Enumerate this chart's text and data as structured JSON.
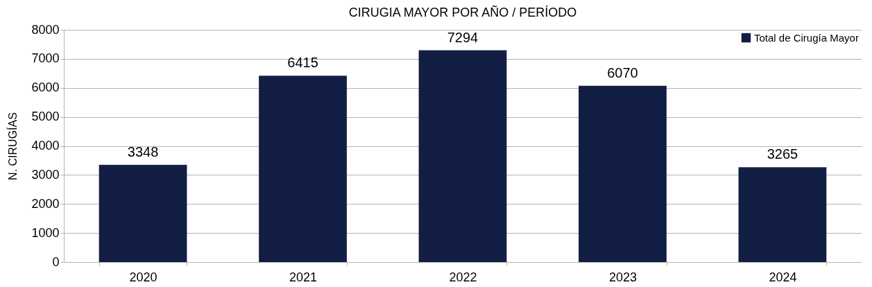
{
  "chart_data": {
    "type": "bar",
    "title": "CIRUGIA MAYOR POR AÑO / PERÍODO",
    "ylabel": "N. CIRUGÍAS",
    "categories": [
      "2020",
      "2021",
      "2022",
      "2023",
      "2024"
    ],
    "series": [
      {
        "name": "Total de Cirugía Mayor",
        "color": "#131e44",
        "values": [
          3348,
          6415,
          7294,
          6070,
          3265
        ]
      }
    ],
    "ylim": [
      0,
      8000
    ],
    "yticks": [
      0,
      1000,
      2000,
      3000,
      4000,
      5000,
      6000,
      7000,
      8000
    ],
    "grid": "y",
    "legend": "top right",
    "data_labels": true
  }
}
